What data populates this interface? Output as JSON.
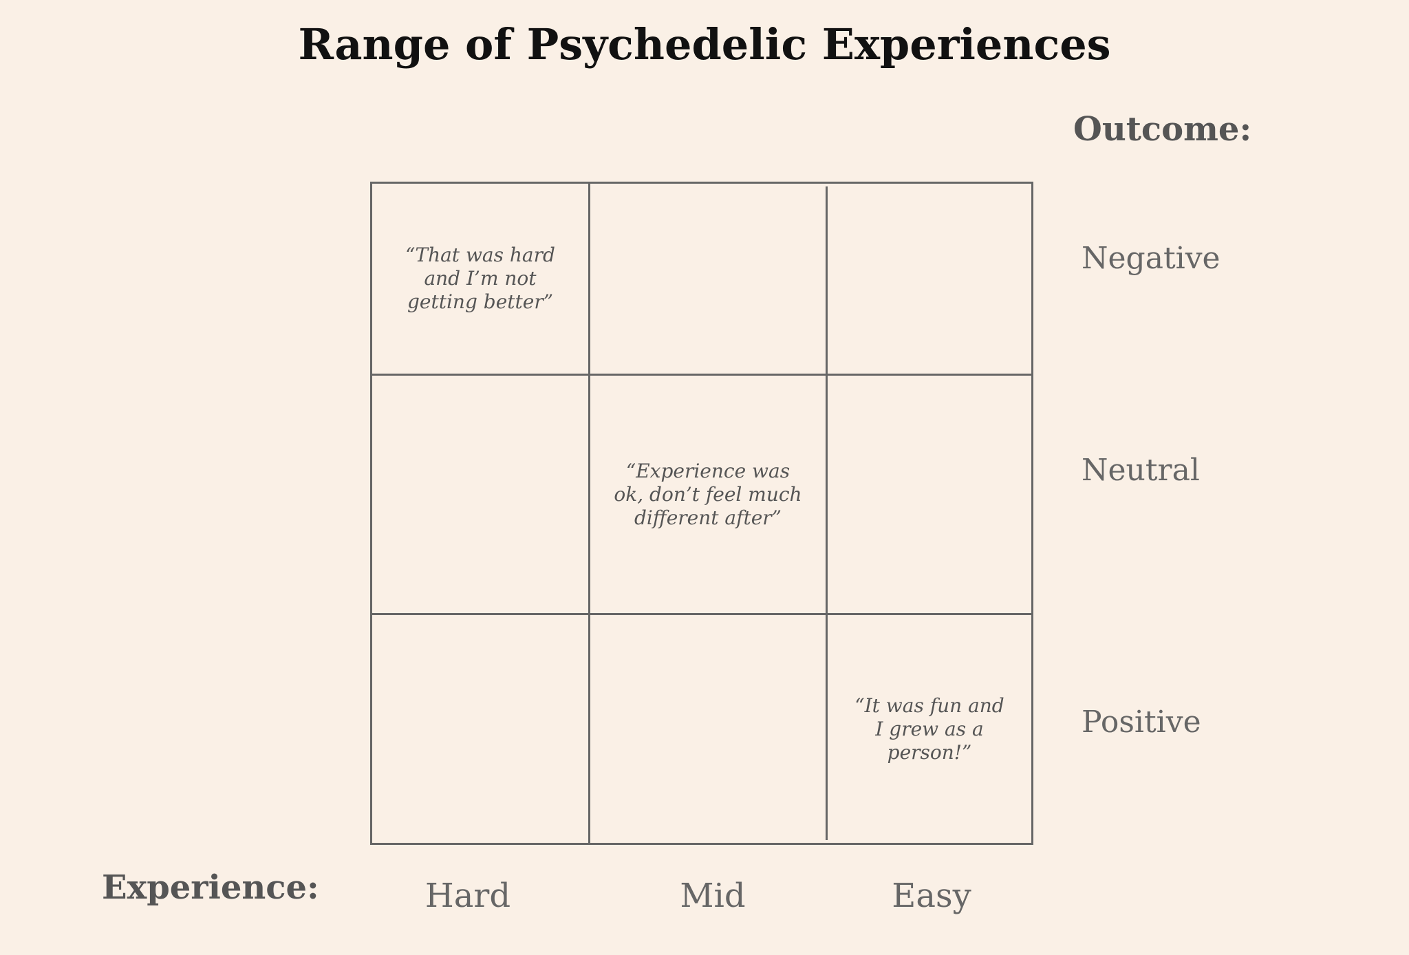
{
  "title": "Range of Psychedelic Experiences",
  "outcome_axis": {
    "title": "Outcome:",
    "labels": [
      "Negative",
      "Neutral",
      "Positive"
    ]
  },
  "experience_axis": {
    "title": "Experience:",
    "labels": [
      "Hard",
      "Mid",
      "Easy"
    ]
  },
  "quotes": {
    "hard_negative": "“That was hard and I’m not getting better”",
    "mid_neutral": "“Experience was ok, don’t feel much different after”",
    "easy_positive": "“It was fun and I grew as a person!”"
  },
  "colors": {
    "background": "#faf0e6",
    "title": "#111111",
    "text": "#555555",
    "grid_line": "#666666"
  }
}
